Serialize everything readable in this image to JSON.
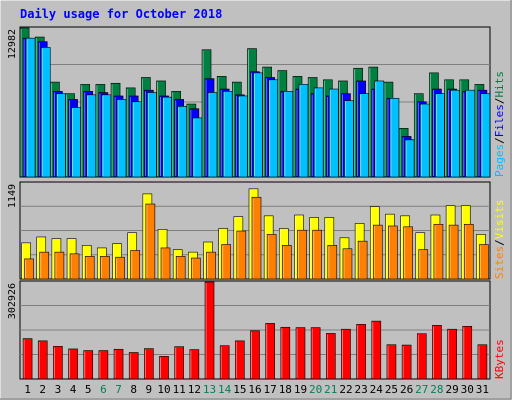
{
  "chart_data": {
    "type": "bar",
    "title": "Daily usage for October 2018",
    "categories": [
      "1",
      "2",
      "3",
      "4",
      "5",
      "6",
      "7",
      "8",
      "9",
      "10",
      "11",
      "12",
      "13",
      "14",
      "15",
      "16",
      "17",
      "18",
      "19",
      "20",
      "21",
      "22",
      "23",
      "24",
      "25",
      "26",
      "27",
      "28",
      "29",
      "30",
      "31"
    ],
    "weekend_days": [
      6,
      7,
      13,
      14,
      20,
      21,
      27,
      28
    ],
    "panels": [
      {
        "name": "hits-files-pages",
        "ymax_label": "12982",
        "ylim": [
          0,
          12982
        ],
        "series": [
          {
            "name": "Hits",
            "color": "#008040",
            "values": [
              12982,
              12200,
              8300,
              7300,
              8100,
              8100,
              8200,
              7800,
              8700,
              8400,
              7500,
              6400,
              11100,
              8800,
              8300,
              11200,
              9600,
              9300,
              8800,
              8700,
              8500,
              8400,
              9500,
              9600,
              8300,
              4300,
              7300,
              9100,
              8500,
              8500,
              8100
            ]
          },
          {
            "name": "Files",
            "color": "#0000ff",
            "values": [
              12100,
              11800,
              7500,
              6800,
              7500,
              7400,
              7100,
              7100,
              7600,
              7100,
              6800,
              6000,
              8600,
              7700,
              7200,
              9200,
              8700,
              7500,
              7700,
              7300,
              7100,
              7300,
              8400,
              7700,
              6900,
              3600,
              6600,
              7700,
              7700,
              7500,
              7600
            ]
          },
          {
            "name": "Pages",
            "color": "#00c0ff",
            "values": [
              12100,
              11300,
              7300,
              6100,
              7200,
              7200,
              6800,
              6600,
              7400,
              7000,
              6200,
              5200,
              7400,
              7500,
              7100,
              9100,
              8500,
              7500,
              8100,
              7800,
              7700,
              6700,
              7300,
              8400,
              6900,
              3300,
              6400,
              7300,
              7600,
              7600,
              7300
            ]
          }
        ]
      },
      {
        "name": "visits-sites",
        "ymax_label": "1149",
        "ylim": [
          0,
          1149
        ],
        "series": [
          {
            "name": "Visits",
            "color": "#ffff00",
            "values": [
              440,
              510,
              490,
              490,
              410,
              380,
              430,
              560,
              1020,
              600,
              360,
              330,
              450,
              610,
              750,
              1080,
              760,
              610,
              770,
              740,
              740,
              500,
              670,
              870,
              780,
              760,
              560,
              770,
              880,
              880,
              540
            ]
          },
          {
            "name": "Sites",
            "color": "#ff8000",
            "values": [
              250,
              330,
              330,
              310,
              280,
              280,
              270,
              350,
              900,
              380,
              280,
              260,
              330,
              420,
              580,
              980,
              540,
              410,
              590,
              590,
              410,
              370,
              460,
              650,
              640,
              630,
              360,
              660,
              650,
              660,
              420
            ]
          }
        ]
      },
      {
        "name": "kbytes",
        "ymax_label": "302926",
        "ylim": [
          0,
          302926
        ],
        "series": [
          {
            "name": "KBytes",
            "color": "#ff0000",
            "values": [
              128000,
              121000,
              104000,
              96000,
              91000,
              91000,
              95000,
              85000,
              97000,
              73000,
              103000,
              94000,
              302926,
              106000,
              121000,
              152000,
              175000,
              163000,
              162000,
              162000,
              144000,
              157000,
              172000,
              182000,
              109000,
              108000,
              143000,
              169000,
              157000,
              166000,
              109000
            ]
          }
        ]
      }
    ],
    "axis_labels": {
      "panel1": [
        "Pages",
        "/",
        "Files",
        "/",
        "Hits"
      ],
      "panel2": [
        "Sites",
        "/",
        "Visits"
      ],
      "panel3": [
        "KBytes"
      ]
    }
  }
}
